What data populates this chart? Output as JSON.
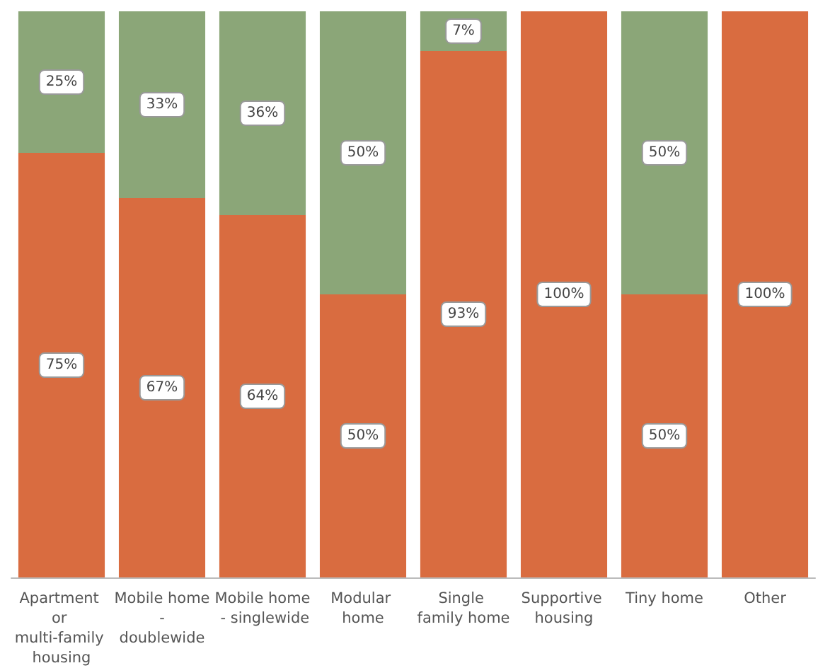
{
  "chart_data": {
    "type": "bar",
    "stacked": true,
    "categories": [
      "Apartment or multi-family housing",
      "Mobile home - doublewide",
      "Mobile home - singlewide",
      "Modular home",
      "Single family home",
      "Supportive housing",
      "Tiny home",
      "Other"
    ],
    "series": [
      {
        "color": "#d96c40",
        "values": [
          75,
          67,
          64,
          50,
          93,
          100,
          50,
          100
        ],
        "value_labels": [
          "75%",
          "67%",
          "64%",
          "50%",
          "93%",
          "100%",
          "50%",
          "100%"
        ]
      },
      {
        "color": "#8ba678",
        "values": [
          25,
          33,
          36,
          50,
          7,
          0,
          50,
          0
        ],
        "value_labels": [
          "25%",
          "33%",
          "36%",
          "50%",
          "7%",
          null,
          "50%",
          null
        ]
      }
    ]
  }
}
